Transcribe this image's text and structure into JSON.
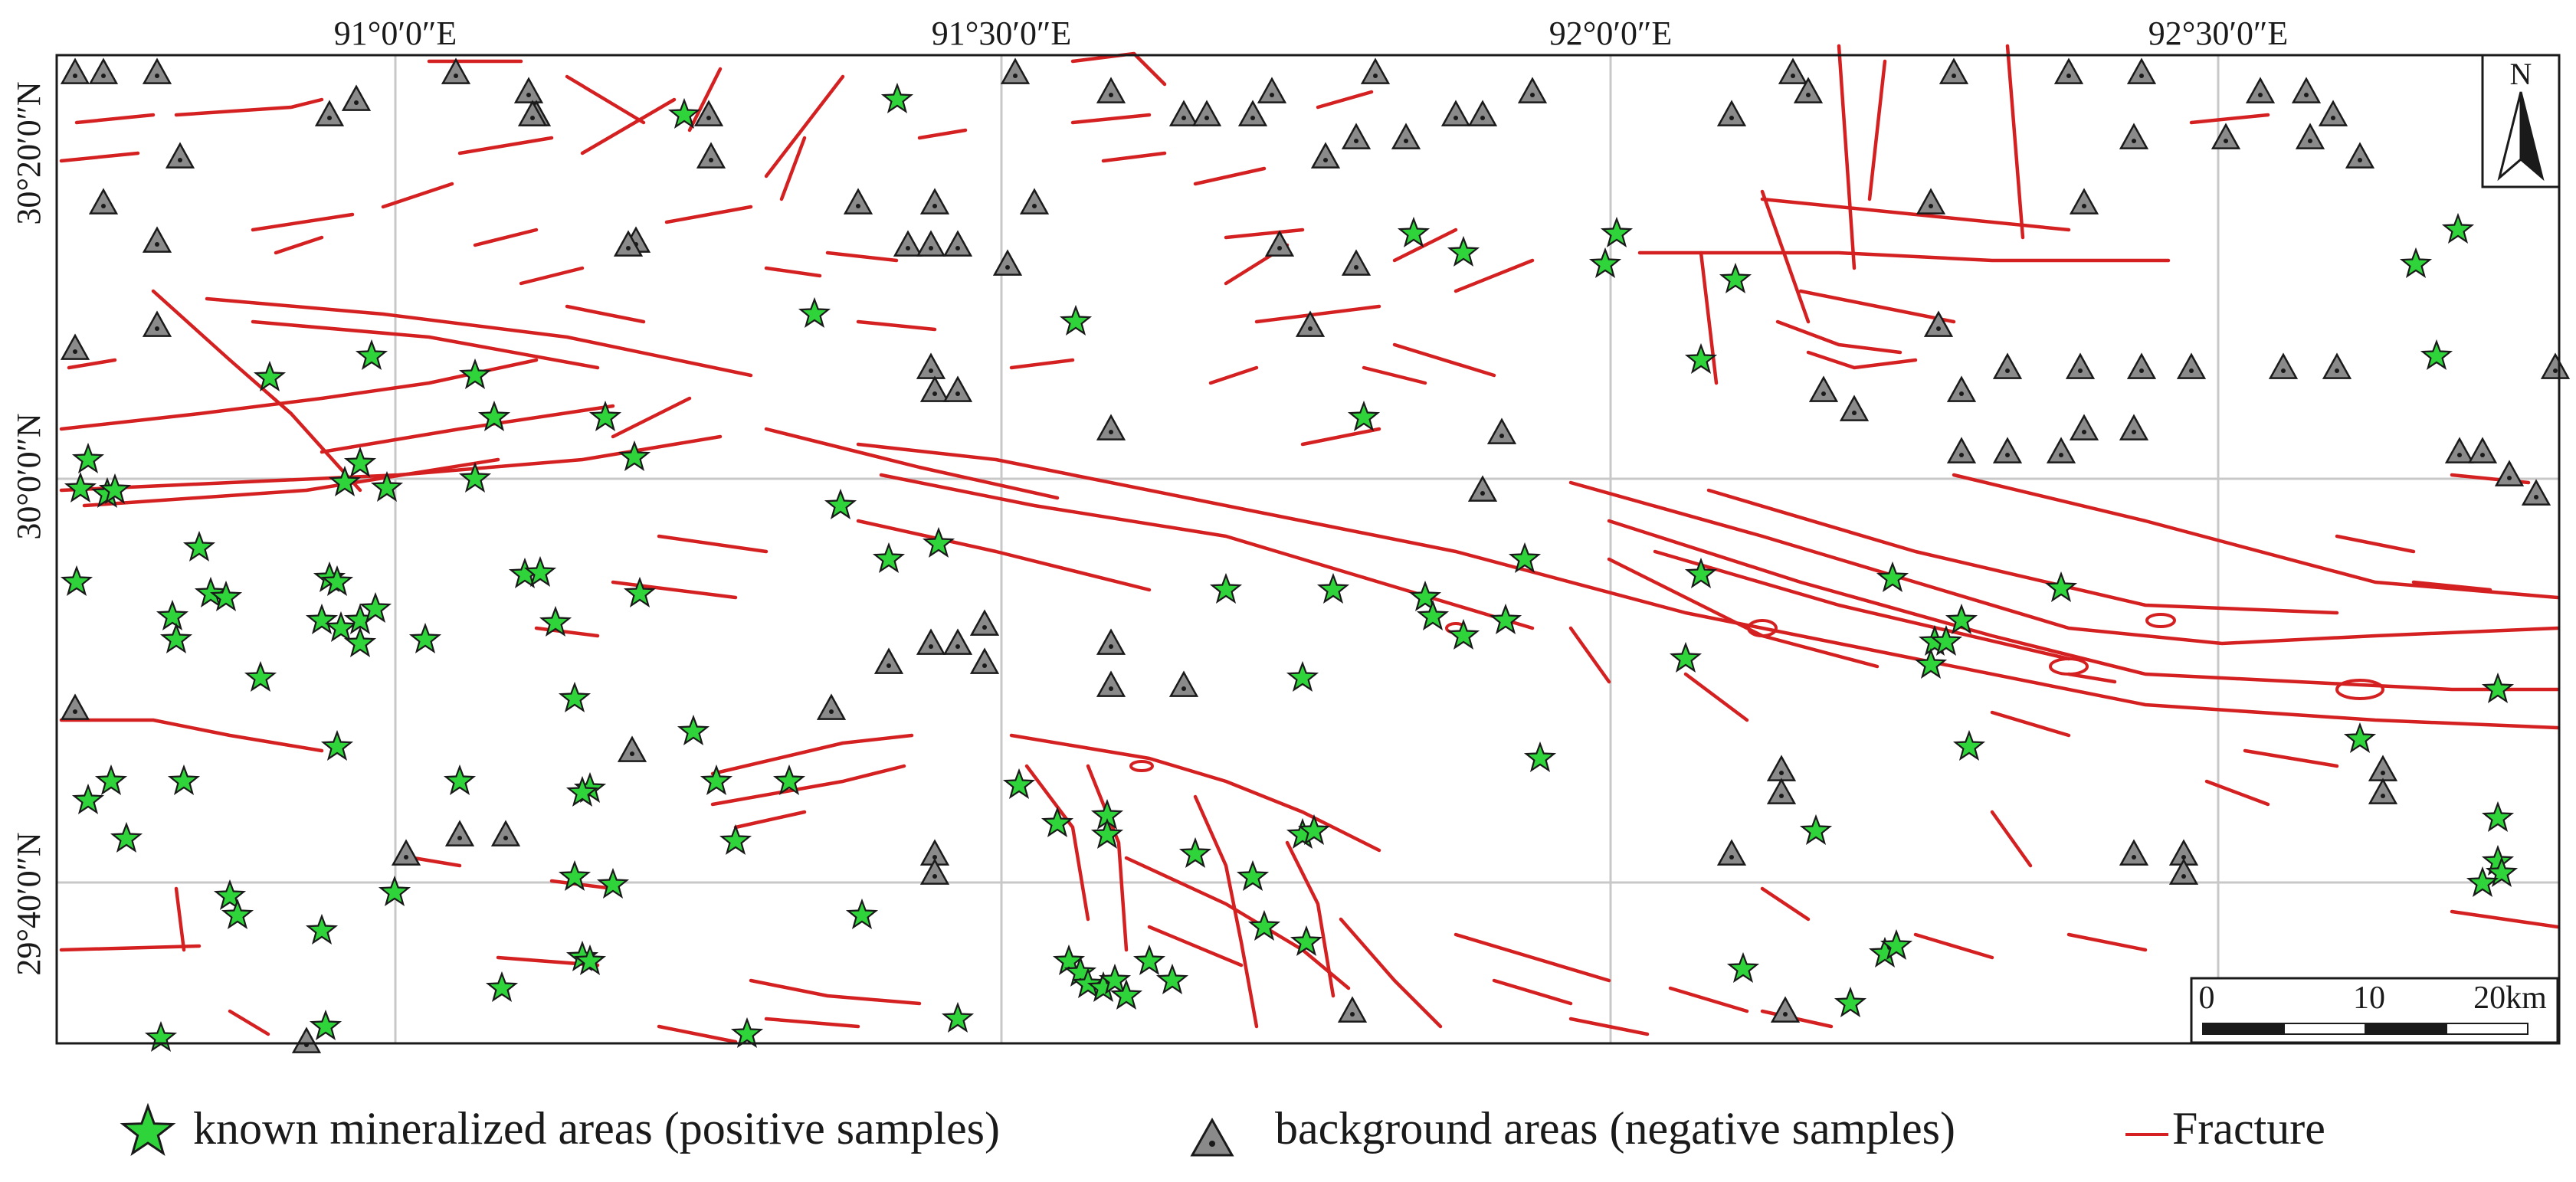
{
  "map": {
    "lon_labels": [
      "91°0′0″E",
      "91°30′0″E",
      "92°0′0″E",
      "92°30′0″E"
    ],
    "lat_labels": [
      "30°20′0″N",
      "30°0′0″N",
      "29°40′0″N"
    ],
    "north_arrow": "N",
    "scale_bar": {
      "ticks": [
        "0",
        "10",
        "20km"
      ]
    }
  },
  "legend": {
    "positive": "known mineralized areas (positive samples)",
    "negative": "background areas (negative samples)",
    "fracture": "Fracture"
  },
  "colors": {
    "fracture": "#d42020",
    "positive": "#2fd43a",
    "negative": "#8a8a8a",
    "grid": "#c8c8c8"
  }
}
